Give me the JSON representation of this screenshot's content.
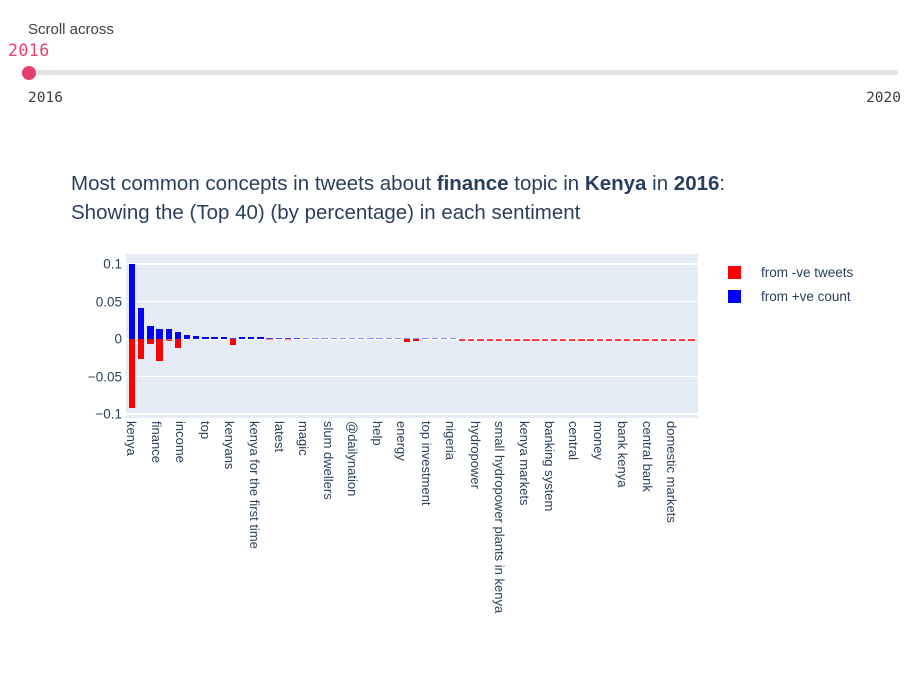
{
  "slider": {
    "label": "Scroll across",
    "current_value": "2016",
    "min_mark": "2016",
    "max_mark": "2020",
    "accent_color": "#e83e6d",
    "track_color": "#e2e2e2"
  },
  "title": {
    "color": "#2a3f5f",
    "line1_segments": [
      {
        "text": "Most common concepts in tweets about ",
        "bold": false
      },
      {
        "text": "finance",
        "bold": true
      },
      {
        "text": " topic in ",
        "bold": false
      },
      {
        "text": "Kenya",
        "bold": true
      },
      {
        "text": " in ",
        "bold": false
      },
      {
        "text": "2016",
        "bold": true
      },
      {
        "text": ":",
        "bold": false
      }
    ],
    "line2_segments": [
      {
        "text": "Showing the (Top 40) (by percentage) in each sentiment",
        "bold": false
      }
    ]
  },
  "chart_data": {
    "type": "bar",
    "title": "Most common concepts in tweets about finance topic in Kenya in 2016: Showing the (Top 40) (by percentage) in each sentiment",
    "xlabel": "",
    "ylabel": "",
    "ylim": [
      -0.106,
      0.112
    ],
    "plot_background": "#e5ecf6",
    "grid": true,
    "legend_position": "top-right",
    "yticks": [
      {
        "label": "0.1",
        "value": 0.1
      },
      {
        "label": "0.05",
        "value": 0.05
      },
      {
        "label": "0",
        "value": 0
      },
      {
        "label": "−0.05",
        "value": -0.05
      },
      {
        "label": "−0.1",
        "value": -0.1
      }
    ],
    "x_tick_labels": [
      "kenya",
      "finance",
      "income",
      "top",
      "kenyans",
      "kenya for the first time",
      "latest",
      "magic",
      "slum dwellers",
      "@dailynation",
      "help",
      "energy",
      "top investment",
      "nigeria",
      "hydropower",
      "small hydropower plants in kenya",
      "kenya markets",
      "banking system",
      "central",
      "money",
      "bank kenya",
      "central bank",
      "domestic markets"
    ],
    "bars_total": 62,
    "legend": [
      {
        "label": "from -ve tweets",
        "color": "#ff0000"
      },
      {
        "label": "from +ve count",
        "color": "#0000ff"
      }
    ],
    "series": [
      {
        "name": "from +ve count",
        "color": "#0000ff",
        "values": [
          0.1,
          0.041,
          0.017,
          0.014,
          0.013,
          0.01,
          0.005,
          0.0035,
          0.003,
          0.003,
          0.003,
          0.002,
          0.0025,
          0.0025,
          0.0025,
          0.002,
          0.002,
          0.002,
          0.002,
          0.0015,
          0.0015,
          0.0015,
          0.0015,
          0.0015,
          0.0015,
          0.0015,
          0.0015,
          0.0015,
          0.0015,
          0.0015,
          0.0015,
          0.001,
          0.001,
          0.001,
          0.001,
          0.001,
          0,
          0,
          0,
          0,
          0,
          0,
          0,
          0,
          0,
          0,
          0,
          0,
          0,
          0,
          0,
          0,
          0,
          0,
          0,
          0,
          0,
          0,
          0,
          0,
          0,
          0
        ]
      },
      {
        "name": "from -ve tweets",
        "color": "#ff0000",
        "values": [
          -0.092,
          -0.026,
          -0.007,
          -0.029,
          -0.002,
          -0.012,
          0,
          0,
          0,
          0,
          0,
          -0.0075,
          0,
          0,
          0,
          -0.001,
          0,
          -0.001,
          0,
          0,
          0,
          0,
          0,
          0,
          0,
          0,
          0,
          0,
          0,
          0,
          -0.004,
          -0.003,
          0,
          0,
          0,
          0,
          -0.002,
          -0.002,
          -0.002,
          -0.002,
          -0.002,
          -0.002,
          -0.002,
          -0.002,
          -0.002,
          -0.002,
          -0.002,
          -0.002,
          -0.002,
          -0.002,
          -0.002,
          -0.002,
          -0.002,
          -0.002,
          -0.002,
          -0.002,
          -0.002,
          -0.002,
          -0.002,
          -0.002,
          -0.002,
          -0.002
        ]
      }
    ]
  }
}
